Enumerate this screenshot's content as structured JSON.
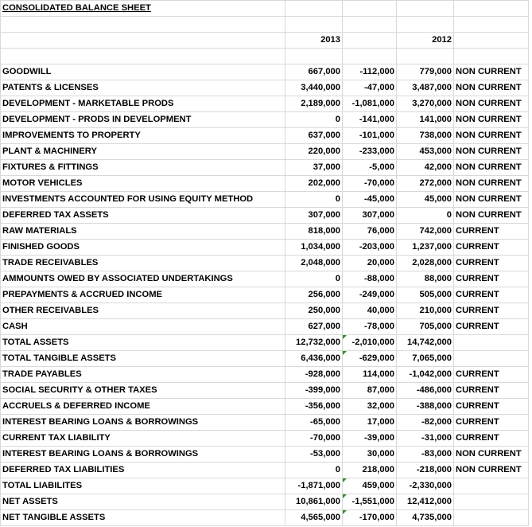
{
  "title": "CONSOLIDATED BALANCE SHEET",
  "headers": {
    "year1": "2013",
    "year2": "2012"
  },
  "rows": [
    {
      "label": "GOODWILL",
      "y2013": "667,000",
      "diff": "-112,000",
      "y2012": "779,000",
      "cls": "NON CURRENT",
      "sign": "neg",
      "mark": false
    },
    {
      "label": "PATENTS & LICENSES",
      "y2013": "3,440,000",
      "diff": "-47,000",
      "y2012": "3,487,000",
      "cls": "NON CURRENT",
      "sign": "neg",
      "mark": false
    },
    {
      "label": "DEVELOPMENT - MARKETABLE PRODS",
      "y2013": "2,189,000",
      "diff": "-1,081,000",
      "y2012": "3,270,000",
      "cls": "NON CURRENT",
      "sign": "neg",
      "mark": false
    },
    {
      "label": "DEVELOPMENT - PRODS IN DEVELOPMENT",
      "y2013": "0",
      "diff": "-141,000",
      "y2012": "141,000",
      "cls": "NON CURRENT",
      "sign": "neg",
      "mark": false
    },
    {
      "label": "IMPROVEMENTS TO  PROPERTY",
      "y2013": "637,000",
      "diff": "-101,000",
      "y2012": "738,000",
      "cls": "NON CURRENT",
      "sign": "neg",
      "mark": false
    },
    {
      "label": "PLANT & MACHINERY",
      "y2013": "220,000",
      "diff": "-233,000",
      "y2012": "453,000",
      "cls": "NON CURRENT",
      "sign": "neg",
      "mark": false
    },
    {
      "label": "FIXTURES & FITTINGS",
      "y2013": "37,000",
      "diff": "-5,000",
      "y2012": "42,000",
      "cls": "NON CURRENT",
      "sign": "neg",
      "mark": false
    },
    {
      "label": "MOTOR VEHICLES",
      "y2013": "202,000",
      "diff": "-70,000",
      "y2012": "272,000",
      "cls": "NON CURRENT",
      "sign": "neg",
      "mark": false
    },
    {
      "label": "INVESTMENTS ACCOUNTED FOR USING EQUITY METHOD",
      "y2013": "0",
      "diff": "-45,000",
      "y2012": "45,000",
      "cls": "NON CURRENT",
      "sign": "neg",
      "mark": false
    },
    {
      "label": "DEFERRED TAX ASSETS",
      "y2013": "307,000",
      "diff": "307,000",
      "y2012": "0",
      "cls": "NON CURRENT",
      "sign": "pos",
      "mark": false
    },
    {
      "label": "RAW MATERIALS",
      "y2013": "818,000",
      "diff": "76,000",
      "y2012": "742,000",
      "cls": "CURRENT",
      "sign": "pos",
      "mark": false
    },
    {
      "label": "FINISHED GOODS",
      "y2013": "1,034,000",
      "diff": "-203,000",
      "y2012": "1,237,000",
      "cls": "CURRENT",
      "sign": "neg",
      "mark": false
    },
    {
      "label": "TRADE RECEIVABLES",
      "y2013": "2,048,000",
      "diff": "20,000",
      "y2012": "2,028,000",
      "cls": "CURRENT",
      "sign": "pos",
      "mark": false
    },
    {
      "label": "AMMOUNTS OWED BY ASSOCIATED UNDERTAKINGS",
      "y2013": "0",
      "diff": "-88,000",
      "y2012": "88,000",
      "cls": "CURRENT",
      "sign": "neg",
      "mark": false
    },
    {
      "label": "PREPAYMENTS & ACCRUED INCOME",
      "y2013": "256,000",
      "diff": "-249,000",
      "y2012": "505,000",
      "cls": "CURRENT",
      "sign": "neg",
      "mark": false
    },
    {
      "label": "OTHER RECEIVABLES",
      "y2013": "250,000",
      "diff": "40,000",
      "y2012": "210,000",
      "cls": "CURRENT",
      "sign": "pos",
      "mark": false
    },
    {
      "label": "CASH",
      "y2013": "627,000",
      "diff": "-78,000",
      "y2012": "705,000",
      "cls": "CURRENT",
      "sign": "neg",
      "mark": false
    },
    {
      "label": "TOTAL ASSETS",
      "y2013": "12,732,000",
      "diff": "-2,010,000",
      "y2012": "14,742,000",
      "cls": "",
      "sign": "neg",
      "mark": true
    },
    {
      "label": "TOTAL TANGIBLE ASSETS",
      "y2013": "6,436,000",
      "diff": "-629,000",
      "y2012": "7,065,000",
      "cls": "",
      "sign": "neg",
      "mark": true
    },
    {
      "label": "TRADE PAYABLES",
      "y2013": "-928,000",
      "diff": "114,000",
      "y2012": "-1,042,000",
      "cls": "CURRENT",
      "sign": "pos",
      "mark": false
    },
    {
      "label": "SOCIAL SECURITY & OTHER TAXES",
      "y2013": "-399,000",
      "diff": "87,000",
      "y2012": "-486,000",
      "cls": "CURRENT",
      "sign": "pos",
      "mark": false
    },
    {
      "label": "ACCRUELS & DEFERRED INCOME",
      "y2013": "-356,000",
      "diff": "32,000",
      "y2012": "-388,000",
      "cls": "CURRENT",
      "sign": "pos",
      "mark": false
    },
    {
      "label": "INTEREST BEARING LOANS & BORROWINGS",
      "y2013": "-65,000",
      "diff": "17,000",
      "y2012": "-82,000",
      "cls": "CURRENT",
      "sign": "pos",
      "mark": false
    },
    {
      "label": "CURRENT TAX LIABILITY",
      "y2013": "-70,000",
      "diff": "-39,000",
      "y2012": "-31,000",
      "cls": "CURRENT",
      "sign": "neg",
      "mark": false
    },
    {
      "label": "INTEREST BEARING LOANS & BORROWINGS",
      "y2013": "-53,000",
      "diff": "30,000",
      "y2012": "-83,000",
      "cls": "NON CURRENT",
      "sign": "pos",
      "mark": false
    },
    {
      "label": "DEFERRED TAX LIABILITIES",
      "y2013": "0",
      "diff": "218,000",
      "y2012": "-218,000",
      "cls": "NON CURRENT",
      "sign": "pos",
      "mark": false
    },
    {
      "label": "TOTAL LIABILITES",
      "y2013": "-1,871,000",
      "diff": "459,000",
      "y2012": "-2,330,000",
      "cls": "",
      "sign": "pos",
      "mark": true
    },
    {
      "label": "NET ASSETS",
      "y2013": "10,861,000",
      "diff": "-1,551,000",
      "y2012": "12,412,000",
      "cls": "",
      "sign": "neg",
      "mark": true
    },
    {
      "label": "NET TANGIBLE ASSETS",
      "y2013": "4,565,000",
      "diff": "-170,000",
      "y2012": "4,735,000",
      "cls": "",
      "sign": "neg",
      "mark": true
    }
  ],
  "colors": {
    "negative": "#8b0000",
    "positive": "#1f3a93",
    "grid": "#d9d9d9"
  }
}
